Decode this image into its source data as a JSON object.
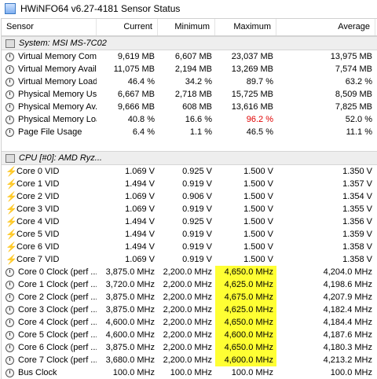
{
  "window": {
    "title": "HWiNFO64 v6.27-4181 Sensor Status",
    "icon": "app-icon"
  },
  "columns": [
    "Sensor",
    "Current",
    "Minimum",
    "Maximum",
    "Average"
  ],
  "groups": [
    {
      "title": "System: MSI MS-7C02",
      "rows": [
        {
          "name": "Virtual Memory Com...",
          "cur": "9,619 MB",
          "min": "6,607 MB",
          "max": "23,037 MB",
          "avg": "13,975 MB",
          "icon": "clock-icon"
        },
        {
          "name": "Virtual Memory Avail...",
          "cur": "11,075 MB",
          "min": "2,194 MB",
          "max": "13,269 MB",
          "avg": "7,574 MB",
          "icon": "clock-icon"
        },
        {
          "name": "Virtual Memory Load",
          "cur": "46.4 %",
          "min": "34.2 %",
          "max": "89.7 %",
          "avg": "63.2 %",
          "icon": "clock-icon"
        },
        {
          "name": "Physical Memory Used",
          "cur": "6,667 MB",
          "min": "2,718 MB",
          "max": "15,725 MB",
          "avg": "8,509 MB",
          "icon": "clock-icon"
        },
        {
          "name": "Physical Memory Av...",
          "cur": "9,666 MB",
          "min": "608 MB",
          "max": "13,616 MB",
          "avg": "7,825 MB",
          "icon": "clock-icon"
        },
        {
          "name": "Physical Memory Load",
          "cur": "40.8 %",
          "min": "16.6 %",
          "max": "96.2 %",
          "avg": "52.0 %",
          "icon": "clock-icon",
          "max_color": "#e00000"
        },
        {
          "name": "Page File Usage",
          "cur": "6.4 %",
          "min": "1.1 %",
          "max": "46.5 %",
          "avg": "11.1 %",
          "icon": "clock-icon"
        }
      ]
    },
    {
      "title": "CPU [#0]: AMD Ryz...",
      "rows": [
        {
          "name": "Core 0 VID",
          "cur": "1.069 V",
          "min": "0.925 V",
          "max": "1.500 V",
          "avg": "1.350 V",
          "icon": "bolt-icon"
        },
        {
          "name": "Core 1 VID",
          "cur": "1.494 V",
          "min": "0.919 V",
          "max": "1.500 V",
          "avg": "1.357 V",
          "icon": "bolt-icon"
        },
        {
          "name": "Core 2 VID",
          "cur": "1.069 V",
          "min": "0.906 V",
          "max": "1.500 V",
          "avg": "1.354 V",
          "icon": "bolt-icon"
        },
        {
          "name": "Core 3 VID",
          "cur": "1.069 V",
          "min": "0.919 V",
          "max": "1.500 V",
          "avg": "1.355 V",
          "icon": "bolt-icon"
        },
        {
          "name": "Core 4 VID",
          "cur": "1.494 V",
          "min": "0.925 V",
          "max": "1.500 V",
          "avg": "1.356 V",
          "icon": "bolt-icon"
        },
        {
          "name": "Core 5 VID",
          "cur": "1.494 V",
          "min": "0.919 V",
          "max": "1.500 V",
          "avg": "1.359 V",
          "icon": "bolt-icon"
        },
        {
          "name": "Core 6 VID",
          "cur": "1.494 V",
          "min": "0.919 V",
          "max": "1.500 V",
          "avg": "1.358 V",
          "icon": "bolt-icon"
        },
        {
          "name": "Core 7 VID",
          "cur": "1.069 V",
          "min": "0.919 V",
          "max": "1.500 V",
          "avg": "1.358 V",
          "icon": "bolt-icon"
        },
        {
          "name": "Core 0 Clock (perf ...",
          "cur": "3,875.0 MHz",
          "min": "2,200.0 MHz",
          "max": "4,650.0 MHz",
          "avg": "4,204.0 MHz",
          "icon": "clock-icon",
          "max_highlight": true
        },
        {
          "name": "Core 1 Clock (perf ...",
          "cur": "3,720.0 MHz",
          "min": "2,200.0 MHz",
          "max": "4,625.0 MHz",
          "avg": "4,198.6 MHz",
          "icon": "clock-icon",
          "max_highlight": true
        },
        {
          "name": "Core 2 Clock (perf ...",
          "cur": "3,875.0 MHz",
          "min": "2,200.0 MHz",
          "max": "4,675.0 MHz",
          "avg": "4,207.9 MHz",
          "icon": "clock-icon",
          "max_highlight": true
        },
        {
          "name": "Core 3 Clock (perf ...",
          "cur": "3,875.0 MHz",
          "min": "2,200.0 MHz",
          "max": "4,625.0 MHz",
          "avg": "4,182.4 MHz",
          "icon": "clock-icon",
          "max_highlight": true
        },
        {
          "name": "Core 4 Clock (perf ...",
          "cur": "4,600.0 MHz",
          "min": "2,200.0 MHz",
          "max": "4,650.0 MHz",
          "avg": "4,184.4 MHz",
          "icon": "clock-icon",
          "max_highlight": true
        },
        {
          "name": "Core 5 Clock (perf ...",
          "cur": "4,600.0 MHz",
          "min": "2,200.0 MHz",
          "max": "4,600.0 MHz",
          "avg": "4,187.6 MHz",
          "icon": "clock-icon",
          "max_highlight": true
        },
        {
          "name": "Core 6 Clock (perf ...",
          "cur": "3,875.0 MHz",
          "min": "2,200.0 MHz",
          "max": "4,650.0 MHz",
          "avg": "4,180.3 MHz",
          "icon": "clock-icon",
          "max_highlight": true
        },
        {
          "name": "Core 7 Clock (perf ...",
          "cur": "3,680.0 MHz",
          "min": "2,200.0 MHz",
          "max": "4,600.0 MHz",
          "avg": "4,213.2 MHz",
          "icon": "clock-icon",
          "max_highlight": true
        },
        {
          "name": "Bus Clock",
          "cur": "100.0 MHz",
          "min": "100.0 MHz",
          "max": "100.0 MHz",
          "avg": "100.0 MHz",
          "icon": "clock-icon"
        }
      ]
    }
  ],
  "colors": {
    "highlight": "#ffff33",
    "alert": "#e00000",
    "group_bg": "#eeeeee"
  }
}
